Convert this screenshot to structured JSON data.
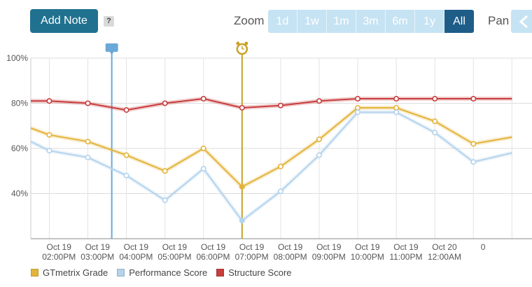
{
  "toolbar": {
    "add_note_label": "Add Note",
    "help_label": "?",
    "zoom_label": "Zoom",
    "zoom_options": [
      "1d",
      "1w",
      "1m",
      "3m",
      "6m",
      "1y",
      "All"
    ],
    "zoom_selected": "All",
    "pan_label": "Pan"
  },
  "chart_data": {
    "type": "line",
    "x_categories": [
      [
        "",
        ""
      ],
      [
        "Oct 19",
        "02:00PM"
      ],
      [
        "Oct 19",
        "03:00PM"
      ],
      [
        "Oct 19",
        "04:00PM"
      ],
      [
        "Oct 19",
        "05:00PM"
      ],
      [
        "Oct 19",
        "06:00PM"
      ],
      [
        "Oct 19",
        "07:00PM"
      ],
      [
        "Oct 19",
        "08:00PM"
      ],
      [
        "Oct 19",
        "09:00PM"
      ],
      [
        "Oct 19",
        "10:00PM"
      ],
      [
        "Oct 19",
        "11:00PM"
      ],
      [
        "Oct 20",
        "12:00AM"
      ],
      [
        "0",
        ""
      ]
    ],
    "y_ticks": [
      "100%",
      "80%",
      "60%",
      "40%"
    ],
    "ylim": [
      20,
      100
    ],
    "grid": true,
    "legend_position": "bottom-left",
    "x": [
      12.85,
      13.33,
      14.33,
      15.33,
      16.33,
      17.33,
      18.33,
      19.33,
      20.33,
      21.33,
      22.33,
      23.33,
      24.33,
      25.33,
      25.85
    ],
    "series": [
      {
        "name": "GTmetrix Grade",
        "color": "#e3b43b",
        "values": [
          69,
          66,
          63,
          57,
          50,
          60,
          43,
          52,
          64,
          78,
          78,
          72,
          62,
          65,
          null
        ]
      },
      {
        "name": "Performance Score",
        "color": "#b4d3ec",
        "values": [
          63,
          59,
          56,
          48,
          37,
          51,
          28,
          41,
          57,
          76,
          76,
          67,
          54,
          58,
          null
        ]
      },
      {
        "name": "Structure Score",
        "color": "#c83d3d",
        "values": [
          81,
          81,
          80,
          77,
          80,
          82,
          78,
          79,
          81,
          82,
          82,
          82,
          82,
          82,
          null
        ]
      }
    ],
    "annotations": [
      {
        "kind": "note-flag",
        "x": 14.95,
        "color": "#6aa8d8",
        "icon": "speech-bubble"
      },
      {
        "kind": "alarm-marker",
        "x": 18.33,
        "color": "#c9a227",
        "icon": "alarm-clock"
      }
    ]
  }
}
